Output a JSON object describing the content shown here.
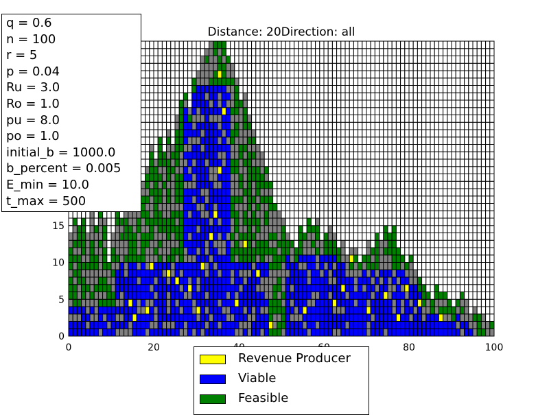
{
  "chart_data": {
    "type": "heatmap",
    "title": "Distance: 20Direction: all",
    "xlabel": "",
    "ylabel": "",
    "xlim": [
      0,
      100
    ],
    "ylim": [
      0,
      40
    ],
    "x_ticks": [
      0,
      20,
      40,
      60,
      80,
      100
    ],
    "y_ticks_visible": [
      0,
      5,
      10,
      15
    ],
    "cell_width": 1,
    "cell_height": 1,
    "grid": true,
    "colors": {
      "revenue_producer": "#ffff00",
      "viable": "#0000ff",
      "feasible": "#008000",
      "other": "#808080",
      "empty": "#ffffff",
      "cell_edge": "#000000"
    },
    "series": [
      {
        "name": "Revenue Producer",
        "color": "#ffff00"
      },
      {
        "name": "Viable",
        "color": "#0000ff"
      },
      {
        "name": "Feasible",
        "color": "#008000"
      }
    ],
    "column_heights": [
      14,
      16,
      15,
      16,
      14,
      17,
      15,
      18,
      16,
      10,
      14,
      17,
      16,
      18,
      17,
      20,
      19,
      21,
      23,
      26,
      24,
      27,
      25,
      28,
      26,
      30,
      32,
      33,
      31,
      35,
      36,
      38,
      39,
      40,
      41,
      42,
      40,
      38,
      37,
      35,
      32,
      33,
      30,
      28,
      26,
      25,
      23,
      21,
      18,
      17,
      16,
      14,
      13,
      12,
      15,
      14,
      16,
      15,
      16,
      13,
      14,
      15,
      14,
      12,
      13,
      11,
      12,
      12,
      10,
      11,
      13,
      12,
      14,
      13,
      15,
      14,
      15,
      12,
      11,
      10,
      11,
      9,
      8,
      7,
      6,
      5,
      7,
      6,
      6,
      5,
      4,
      5,
      6,
      5,
      3,
      4,
      3,
      3,
      2,
      2
    ],
    "viable_ranges": [
      {
        "x_from": 0,
        "x_to": 30,
        "y_from": 0,
        "y_to": 4
      },
      {
        "x_from": 11,
        "x_to": 47,
        "y_from": 0,
        "y_to": 10
      },
      {
        "x_from": 27,
        "x_to": 38,
        "y_from": 10,
        "y_to": 34
      },
      {
        "x_from": 51,
        "x_to": 66,
        "y_from": 0,
        "y_to": 11
      },
      {
        "x_from": 66,
        "x_to": 83,
        "y_from": 0,
        "y_to": 9
      },
      {
        "x_from": 83,
        "x_to": 96,
        "y_from": 0,
        "y_to": 3
      }
    ],
    "revenue_cells": [
      [
        15,
        2
      ],
      [
        18,
        3
      ],
      [
        19,
        9
      ],
      [
        23,
        8
      ],
      [
        25,
        7
      ],
      [
        28,
        6
      ],
      [
        31,
        9
      ],
      [
        33,
        13
      ],
      [
        34,
        16
      ],
      [
        35,
        22
      ],
      [
        36,
        30
      ],
      [
        35,
        35
      ],
      [
        39,
        4
      ],
      [
        41,
        12
      ],
      [
        44,
        8
      ],
      [
        47,
        1
      ],
      [
        55,
        3
      ],
      [
        62,
        4
      ],
      [
        64,
        6
      ],
      [
        66,
        10
      ],
      [
        70,
        3
      ],
      [
        74,
        5
      ],
      [
        77,
        2
      ],
      [
        79,
        6
      ],
      [
        82,
        4
      ],
      [
        87,
        2
      ],
      [
        14,
        4
      ],
      [
        30,
        3
      ]
    ],
    "legend": {
      "position": "below",
      "entries": [
        "Revenue Producer",
        "Viable",
        "Feasible"
      ]
    },
    "parameters": [
      "q = 0.6",
      "n = 100",
      "r = 5",
      "p = 0.04",
      "Ru = 3.0",
      "Ro = 1.0",
      "pu = 8.0",
      "po = 1.0",
      "initial_b = 1000.0",
      "b_percent = 0.005",
      "E_min = 10.0",
      "t_max = 500"
    ]
  }
}
